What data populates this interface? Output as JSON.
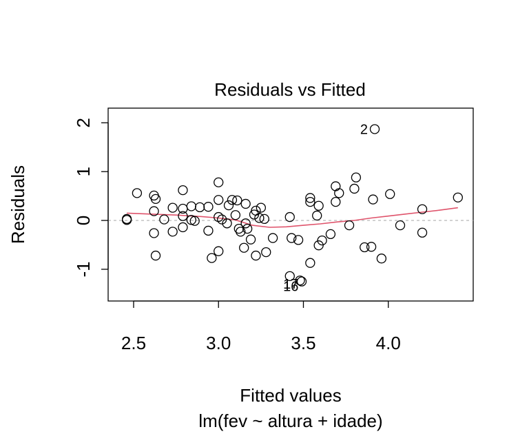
{
  "chart_data": {
    "type": "scatter",
    "title": "Residuals vs Fitted",
    "xlabel": "Fitted values",
    "subtitle": "lm(fev ~ altura + idade)",
    "ylabel": "Residuals",
    "xlim": [
      2.35,
      4.5
    ],
    "ylim": [
      -1.65,
      2.3
    ],
    "xticks": [
      2.5,
      3.0,
      3.5,
      4.0
    ],
    "xtick_labels": [
      "2.5",
      "3.0",
      "3.5",
      "4.0"
    ],
    "yticks": [
      -1,
      0,
      1,
      2
    ],
    "ytick_labels": [
      "-1",
      "0",
      "1",
      "2"
    ],
    "grid": false,
    "reference_line": 0,
    "colors": {
      "points": "#000000",
      "smooth": "#DF536B",
      "reference": "#BEBEBE"
    },
    "points": [
      {
        "x": 2.46,
        "y": 0.01
      },
      {
        "x": 2.46,
        "y": 0.03
      },
      {
        "x": 2.52,
        "y": 0.56
      },
      {
        "x": 2.62,
        "y": 0.51
      },
      {
        "x": 2.63,
        "y": 0.44
      },
      {
        "x": 2.62,
        "y": 0.19
      },
      {
        "x": 2.62,
        "y": -0.26
      },
      {
        "x": 2.63,
        "y": -0.72
      },
      {
        "x": 2.68,
        "y": 0.02
      },
      {
        "x": 2.73,
        "y": 0.26
      },
      {
        "x": 2.73,
        "y": -0.23
      },
      {
        "x": 2.79,
        "y": 0.62
      },
      {
        "x": 2.79,
        "y": 0.24
      },
      {
        "x": 2.79,
        "y": 0.09
      },
      {
        "x": 2.79,
        "y": -0.14
      },
      {
        "x": 2.84,
        "y": 0.29
      },
      {
        "x": 2.84,
        "y": 0.01
      },
      {
        "x": 2.86,
        "y": -0.01
      },
      {
        "x": 2.89,
        "y": 0.27
      },
      {
        "x": 2.94,
        "y": 0.28
      },
      {
        "x": 2.94,
        "y": -0.21
      },
      {
        "x": 2.96,
        "y": -0.77
      },
      {
        "x": 3.0,
        "y": 0.78
      },
      {
        "x": 3.0,
        "y": 0.42
      },
      {
        "x": 3.0,
        "y": 0.07
      },
      {
        "x": 3.0,
        "y": -0.63
      },
      {
        "x": 3.02,
        "y": 0.02
      },
      {
        "x": 3.05,
        "y": -0.06
      },
      {
        "x": 3.06,
        "y": 0.31
      },
      {
        "x": 3.08,
        "y": 0.42
      },
      {
        "x": 3.1,
        "y": 0.11
      },
      {
        "x": 3.11,
        "y": 0.41
      },
      {
        "x": 3.12,
        "y": -0.17
      },
      {
        "x": 3.13,
        "y": -0.23
      },
      {
        "x": 3.16,
        "y": 0.34
      },
      {
        "x": 3.16,
        "y": -0.06
      },
      {
        "x": 3.15,
        "y": -0.56
      },
      {
        "x": 3.17,
        "y": -0.17
      },
      {
        "x": 3.19,
        "y": -0.39
      },
      {
        "x": 3.21,
        "y": 0.12
      },
      {
        "x": 3.22,
        "y": 0.2
      },
      {
        "x": 3.22,
        "y": -0.72
      },
      {
        "x": 3.24,
        "y": 0.05
      },
      {
        "x": 3.25,
        "y": 0.26
      },
      {
        "x": 3.27,
        "y": 0.03
      },
      {
        "x": 3.28,
        "y": -0.65
      },
      {
        "x": 3.32,
        "y": -0.36
      },
      {
        "x": 3.42,
        "y": 0.07
      },
      {
        "x": 3.42,
        "y": -1.14
      },
      {
        "x": 3.43,
        "y": -0.36
      },
      {
        "x": 3.47,
        "y": -0.4
      },
      {
        "x": 3.48,
        "y": -1.23
      },
      {
        "x": 3.49,
        "y": -1.25
      },
      {
        "x": 3.54,
        "y": 0.46
      },
      {
        "x": 3.54,
        "y": 0.38
      },
      {
        "x": 3.54,
        "y": -0.87
      },
      {
        "x": 3.58,
        "y": 0.1
      },
      {
        "x": 3.59,
        "y": 0.3
      },
      {
        "x": 3.59,
        "y": -0.51
      },
      {
        "x": 3.61,
        "y": -0.41
      },
      {
        "x": 3.66,
        "y": -0.28
      },
      {
        "x": 3.69,
        "y": 0.7
      },
      {
        "x": 3.69,
        "y": 0.38
      },
      {
        "x": 3.71,
        "y": 0.56
      },
      {
        "x": 3.77,
        "y": -0.1
      },
      {
        "x": 3.81,
        "y": 0.88
      },
      {
        "x": 3.8,
        "y": 0.65
      },
      {
        "x": 3.86,
        "y": -0.55
      },
      {
        "x": 3.91,
        "y": 0.43
      },
      {
        "x": 3.9,
        "y": -0.54
      },
      {
        "x": 3.92,
        "y": 1.87
      },
      {
        "x": 3.96,
        "y": -0.78
      },
      {
        "x": 4.01,
        "y": 0.54
      },
      {
        "x": 4.07,
        "y": -0.1
      },
      {
        "x": 4.2,
        "y": 0.23
      },
      {
        "x": 4.2,
        "y": -0.25
      },
      {
        "x": 4.41,
        "y": 0.47
      }
    ],
    "smooth_line": [
      {
        "x": 2.46,
        "y": 0.15
      },
      {
        "x": 2.6,
        "y": 0.13
      },
      {
        "x": 2.75,
        "y": 0.11
      },
      {
        "x": 2.9,
        "y": 0.08
      },
      {
        "x": 3.0,
        "y": 0.05
      },
      {
        "x": 3.1,
        "y": 0.01
      },
      {
        "x": 3.2,
        "y": -0.1
      },
      {
        "x": 3.3,
        "y": -0.14
      },
      {
        "x": 3.4,
        "y": -0.13
      },
      {
        "x": 3.5,
        "y": -0.1
      },
      {
        "x": 3.6,
        "y": -0.07
      },
      {
        "x": 3.7,
        "y": -0.03
      },
      {
        "x": 3.8,
        "y": 0.0
      },
      {
        "x": 3.9,
        "y": 0.05
      },
      {
        "x": 4.0,
        "y": 0.09
      },
      {
        "x": 4.1,
        "y": 0.13
      },
      {
        "x": 4.2,
        "y": 0.17
      },
      {
        "x": 4.3,
        "y": 0.21
      },
      {
        "x": 4.41,
        "y": 0.26
      }
    ],
    "annotations": [
      {
        "label": "2",
        "x": 3.92,
        "y": 1.87
      },
      {
        "label": "16",
        "x": 3.41,
        "y": -1.35
      },
      {
        "label": "17",
        "x": 3.41,
        "y": -1.3
      }
    ]
  }
}
